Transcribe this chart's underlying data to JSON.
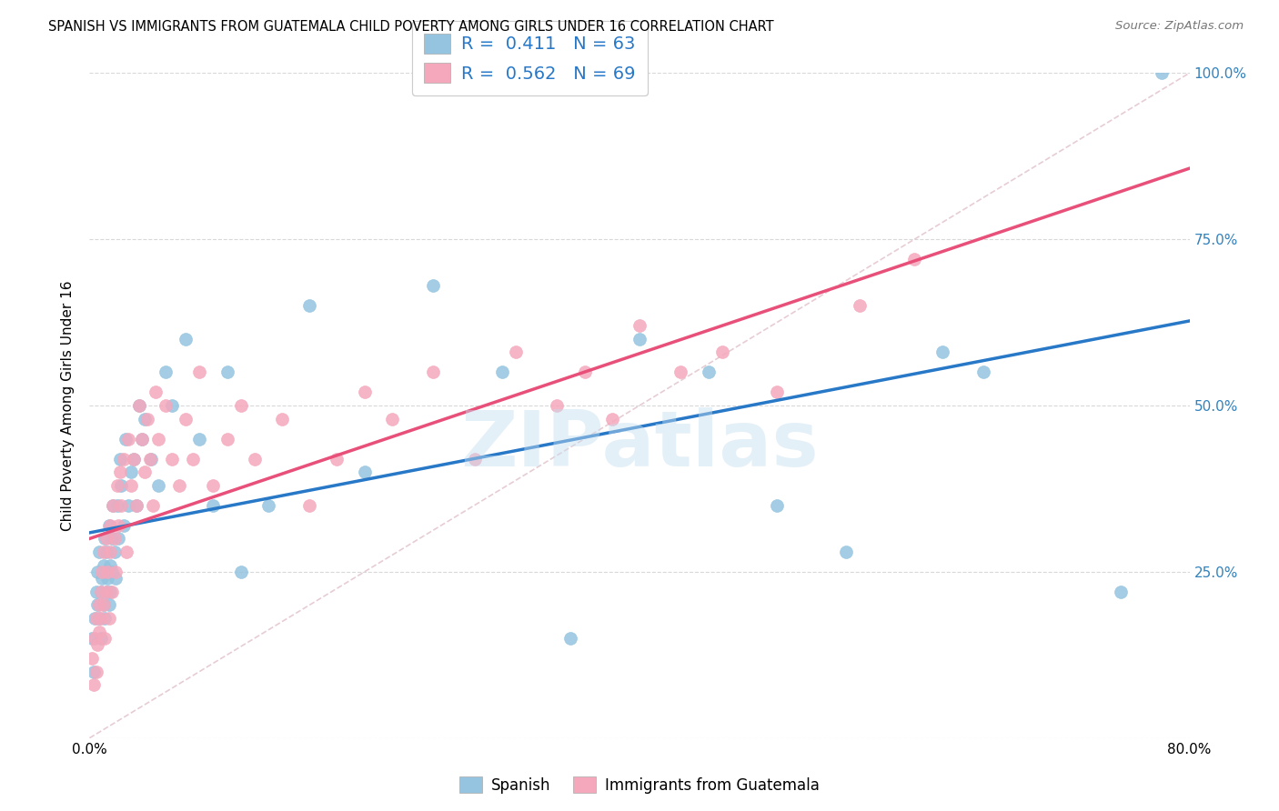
{
  "title": "SPANISH VS IMMIGRANTS FROM GUATEMALA CHILD POVERTY AMONG GIRLS UNDER 16 CORRELATION CHART",
  "source": "Source: ZipAtlas.com",
  "ylabel": "Child Poverty Among Girls Under 16",
  "xlim": [
    0.0,
    0.8
  ],
  "ylim": [
    0.0,
    1.0
  ],
  "xticks": [
    0.0,
    0.1,
    0.2,
    0.3,
    0.4,
    0.5,
    0.6,
    0.7,
    0.8
  ],
  "xtick_labels": [
    "0.0%",
    "",
    "",
    "",
    "",
    "",
    "",
    "",
    "80.0%"
  ],
  "yticks": [
    0.0,
    0.25,
    0.5,
    0.75,
    1.0
  ],
  "ytick_right_labels": [
    "",
    "25.0%",
    "50.0%",
    "75.0%",
    "100.0%"
  ],
  "blue_R": "0.411",
  "blue_N": "63",
  "pink_R": "0.562",
  "pink_N": "69",
  "blue_color": "#94c4e0",
  "pink_color": "#f5a8bc",
  "blue_line_color": "#2878c8",
  "pink_line_color": "#e8507a",
  "ref_line_color": "#e0c0c8",
  "legend_label_blue": "Spanish",
  "legend_label_pink": "Immigrants from Guatemala",
  "watermark": "ZIPatlas",
  "blue_scatter_x": [
    0.002,
    0.003,
    0.004,
    0.005,
    0.006,
    0.006,
    0.007,
    0.007,
    0.008,
    0.008,
    0.009,
    0.01,
    0.01,
    0.011,
    0.011,
    0.012,
    0.012,
    0.013,
    0.014,
    0.014,
    0.015,
    0.015,
    0.016,
    0.016,
    0.017,
    0.018,
    0.019,
    0.02,
    0.021,
    0.022,
    0.023,
    0.025,
    0.026,
    0.028,
    0.03,
    0.032,
    0.034,
    0.036,
    0.038,
    0.04,
    0.045,
    0.05,
    0.055,
    0.06,
    0.07,
    0.08,
    0.09,
    0.1,
    0.11,
    0.13,
    0.16,
    0.2,
    0.25,
    0.3,
    0.35,
    0.4,
    0.45,
    0.5,
    0.55,
    0.62,
    0.65,
    0.75,
    0.78
  ],
  "blue_scatter_y": [
    0.15,
    0.1,
    0.18,
    0.22,
    0.2,
    0.25,
    0.18,
    0.28,
    0.15,
    0.22,
    0.24,
    0.2,
    0.26,
    0.18,
    0.3,
    0.22,
    0.28,
    0.24,
    0.2,
    0.32,
    0.26,
    0.22,
    0.3,
    0.25,
    0.35,
    0.28,
    0.24,
    0.35,
    0.3,
    0.42,
    0.38,
    0.32,
    0.45,
    0.35,
    0.4,
    0.42,
    0.35,
    0.5,
    0.45,
    0.48,
    0.42,
    0.38,
    0.55,
    0.5,
    0.6,
    0.45,
    0.35,
    0.55,
    0.25,
    0.35,
    0.65,
    0.4,
    0.68,
    0.55,
    0.15,
    0.6,
    0.55,
    0.35,
    0.28,
    0.58,
    0.55,
    0.22,
    1.0
  ],
  "pink_scatter_x": [
    0.002,
    0.003,
    0.004,
    0.005,
    0.005,
    0.006,
    0.007,
    0.007,
    0.008,
    0.008,
    0.009,
    0.01,
    0.01,
    0.011,
    0.012,
    0.012,
    0.013,
    0.014,
    0.015,
    0.015,
    0.016,
    0.017,
    0.018,
    0.019,
    0.02,
    0.021,
    0.022,
    0.023,
    0.025,
    0.027,
    0.028,
    0.03,
    0.032,
    0.034,
    0.036,
    0.038,
    0.04,
    0.042,
    0.044,
    0.046,
    0.048,
    0.05,
    0.055,
    0.06,
    0.065,
    0.07,
    0.075,
    0.08,
    0.09,
    0.1,
    0.11,
    0.12,
    0.14,
    0.16,
    0.18,
    0.2,
    0.22,
    0.25,
    0.28,
    0.31,
    0.34,
    0.36,
    0.38,
    0.4,
    0.43,
    0.46,
    0.5,
    0.56,
    0.6
  ],
  "pink_scatter_y": [
    0.12,
    0.08,
    0.15,
    0.1,
    0.18,
    0.14,
    0.2,
    0.16,
    0.22,
    0.18,
    0.25,
    0.2,
    0.28,
    0.15,
    0.22,
    0.3,
    0.25,
    0.18,
    0.32,
    0.28,
    0.22,
    0.35,
    0.3,
    0.25,
    0.38,
    0.32,
    0.4,
    0.35,
    0.42,
    0.28,
    0.45,
    0.38,
    0.42,
    0.35,
    0.5,
    0.45,
    0.4,
    0.48,
    0.42,
    0.35,
    0.52,
    0.45,
    0.5,
    0.42,
    0.38,
    0.48,
    0.42,
    0.55,
    0.38,
    0.45,
    0.5,
    0.42,
    0.48,
    0.35,
    0.42,
    0.52,
    0.48,
    0.55,
    0.42,
    0.58,
    0.5,
    0.55,
    0.48,
    0.62,
    0.55,
    0.58,
    0.52,
    0.65,
    0.72
  ]
}
